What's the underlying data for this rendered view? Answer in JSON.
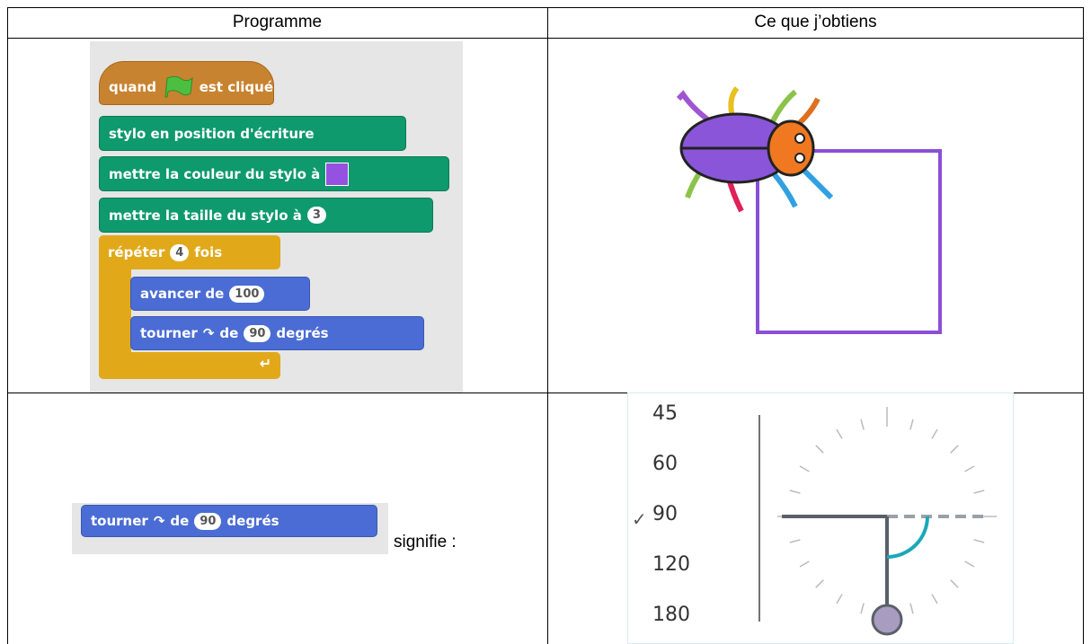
{
  "header": [
    "Programme",
    "Ce que j’obtiens"
  ],
  "program": {
    "hat": {
      "when": "quand",
      "clicked": "est cliqué"
    },
    "pen_down": "stylo en position d'écriture",
    "set_color": "mettre la couleur du stylo à",
    "set_size": {
      "label": "mettre la taille du stylo à",
      "value": "3"
    },
    "repeat": {
      "label": "répéter",
      "count": "4",
      "suffix": "fois"
    },
    "move": {
      "label": "avancer de",
      "value": "100"
    },
    "turn": {
      "label": "tourner",
      "of": "de",
      "value": "90",
      "unit": "degrés"
    }
  },
  "example": {
    "turn": {
      "label": "tourner",
      "of": "de",
      "value": "90",
      "unit": "degrés"
    },
    "caption": "signifie :"
  },
  "angle_menu": {
    "options": [
      "45",
      "60",
      "90",
      "120",
      "180"
    ],
    "selected_mark": "✓"
  }
}
